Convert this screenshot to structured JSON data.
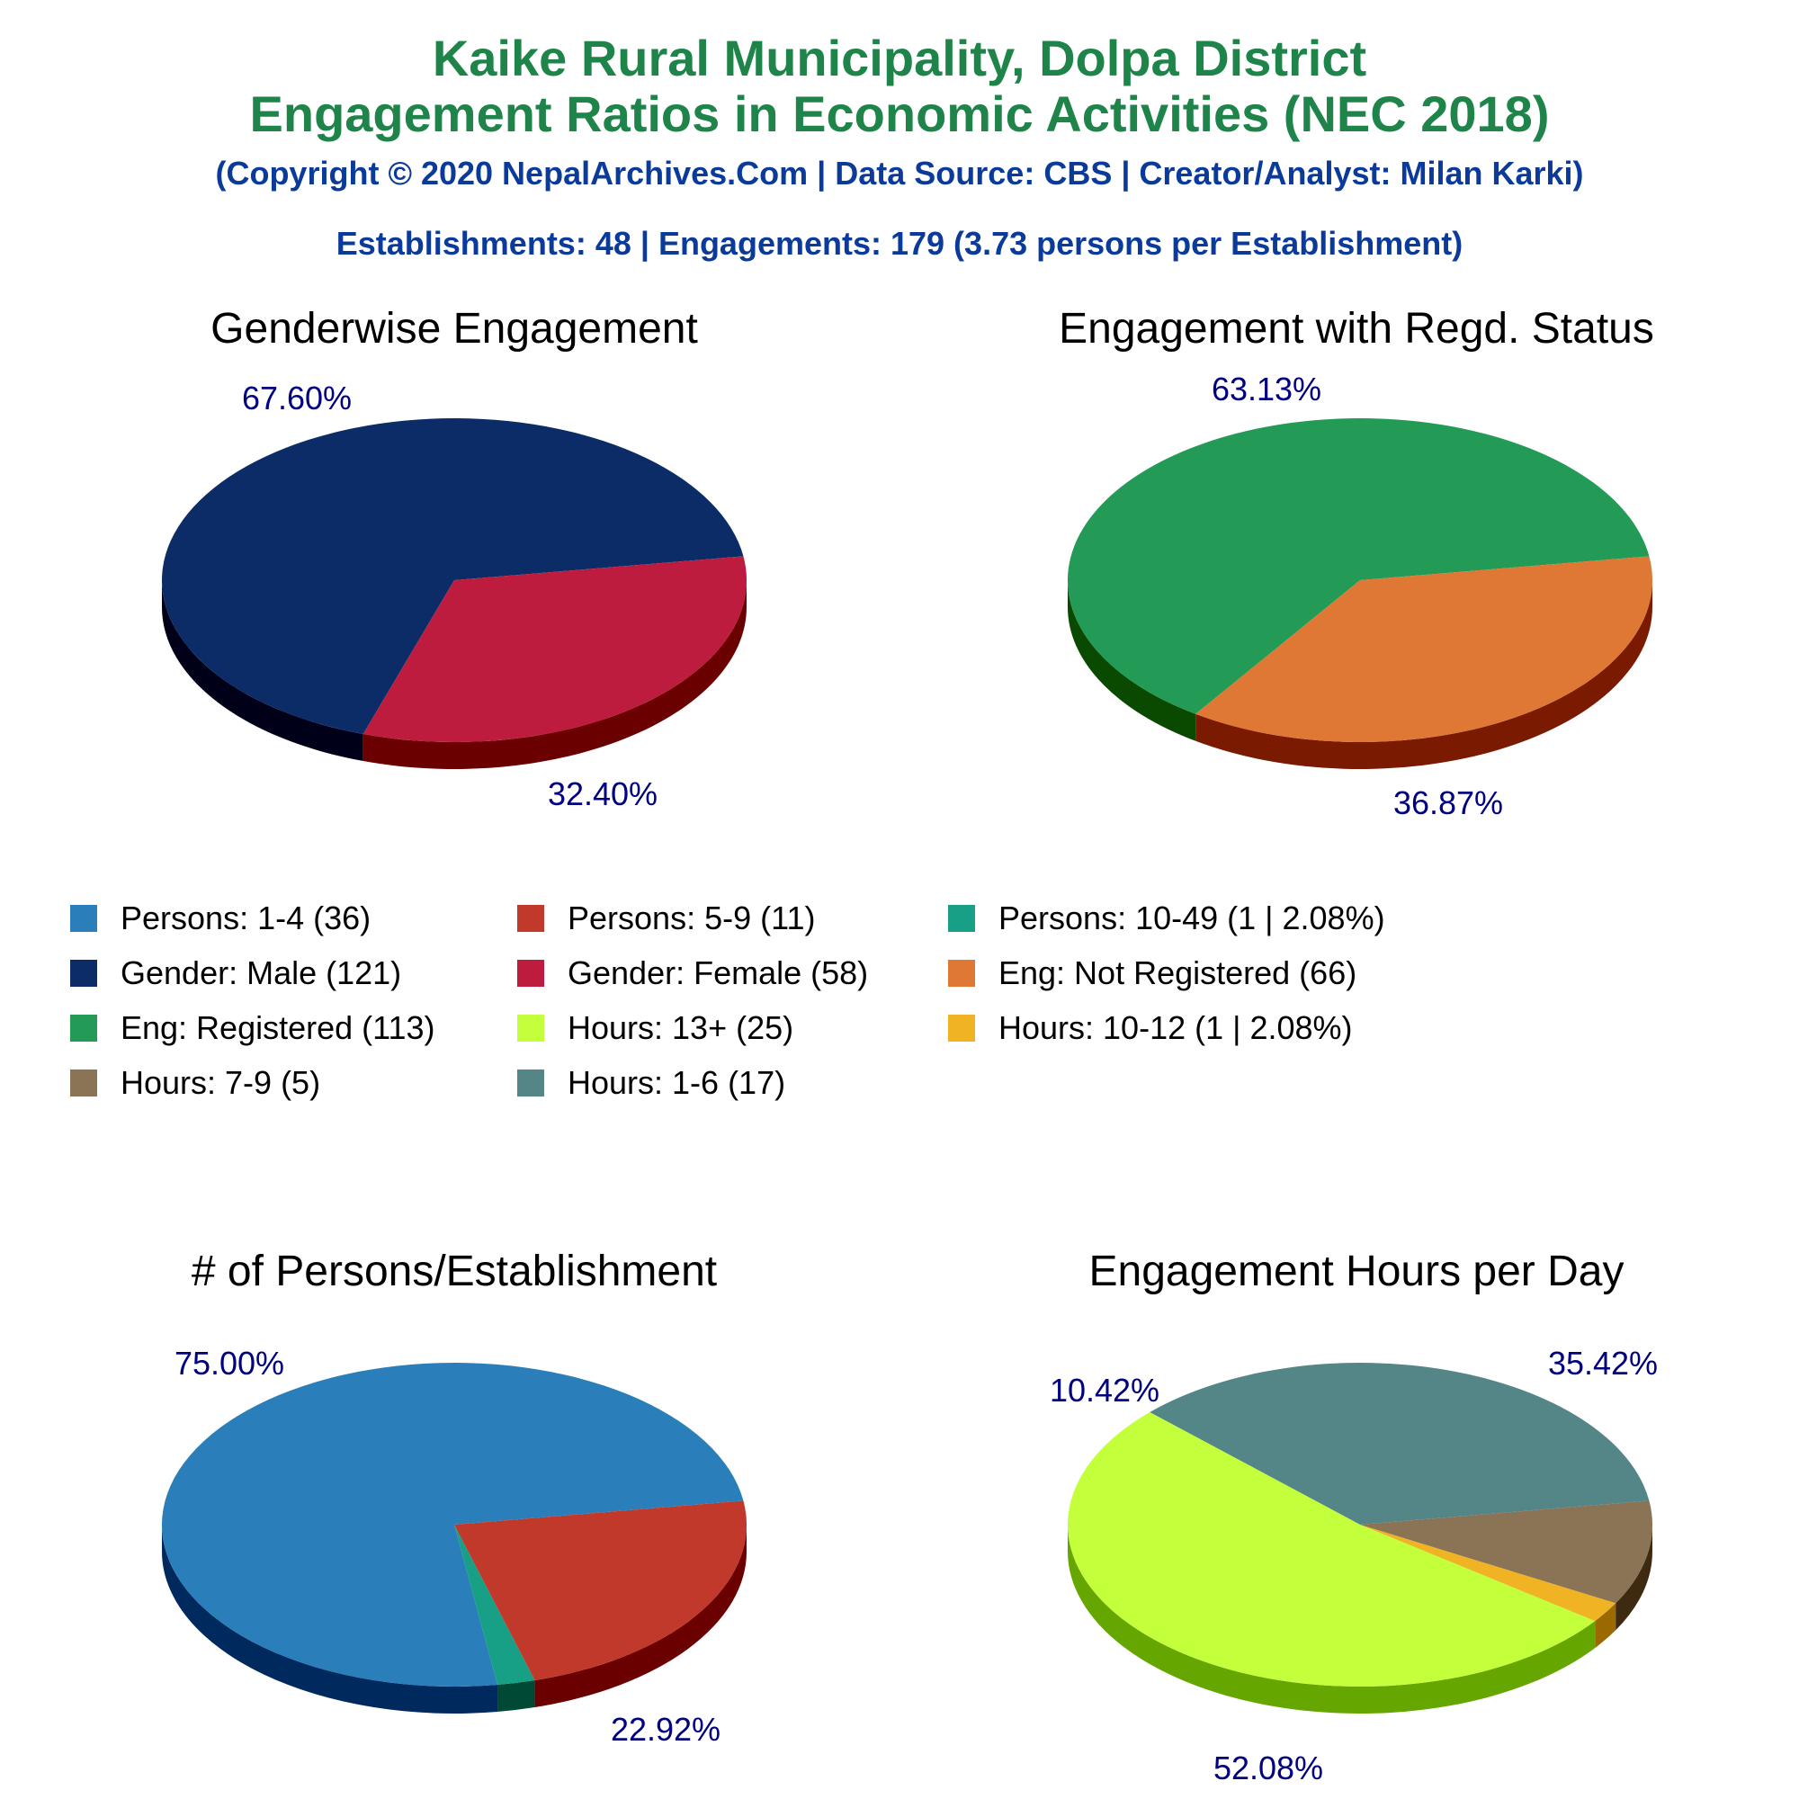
{
  "header": {
    "title_line1": "Kaike Rural Municipality, Dolpa District",
    "title_line2": "Engagement Ratios in Economic Activities (NEC 2018)",
    "subtitle": "(Copyright © 2020 NepalArchives.Com | Data Source: CBS | Creator/Analyst: Milan Karki)",
    "stats": "Establishments: 48 | Engagements: 179 (3.73 persons per Establishment)"
  },
  "legend": [
    {
      "label": "Persons: 1-4 (36)",
      "color": "#2a7fba"
    },
    {
      "label": "Persons: 5-9 (11)",
      "color": "#c0392b"
    },
    {
      "label": "Persons: 10-49 (1 | 2.08%)",
      "color": "#17a085"
    },
    {
      "label": "Gender: Male (121)",
      "color": "#0b2c66"
    },
    {
      "label": "Gender: Female (58)",
      "color": "#be1c3e"
    },
    {
      "label": "Eng: Not Registered (66)",
      "color": "#de7834"
    },
    {
      "label": "Eng: Registered (113)",
      "color": "#239b56"
    },
    {
      "label": "Hours: 13+ (25)",
      "color": "#c4ff3c"
    },
    {
      "label": "Hours: 10-12 (1 | 2.08%)",
      "color": "#efb324"
    },
    {
      "label": "Hours: 7-9 (5)",
      "color": "#8b7355"
    },
    {
      "label": "Hours: 1-6 (17)",
      "color": "#548687"
    }
  ],
  "chart_data": [
    {
      "type": "pie",
      "title": "Genderwise Engagement",
      "slices": [
        {
          "name": "Gender: Male",
          "value": 121,
          "percent_label": "67.60%",
          "color": "#0b2c66",
          "side": "#000018"
        },
        {
          "name": "Gender: Female",
          "value": 58,
          "percent_label": "32.40%",
          "color": "#be1c3e",
          "side": "#6b0000"
        }
      ]
    },
    {
      "type": "pie",
      "title": "Engagement with Regd. Status",
      "slices": [
        {
          "name": "Eng: Registered",
          "value": 113,
          "percent_label": "63.13%",
          "color": "#239b56",
          "side": "#0a4a00"
        },
        {
          "name": "Eng: Not Registered",
          "value": 66,
          "percent_label": "36.87%",
          "color": "#de7834",
          "side": "#7a1a00"
        }
      ]
    },
    {
      "type": "pie",
      "title": "# of Persons/Establishment",
      "slices": [
        {
          "name": "Persons: 1-4",
          "value": 36,
          "percent_label": "75.00%",
          "color": "#2a7fba",
          "side": "#002a5e"
        },
        {
          "name": "Persons: 10-49",
          "value": 1,
          "percent_label": "",
          "color": "#17a085",
          "side": "#004a35"
        },
        {
          "name": "Persons: 5-9",
          "value": 11,
          "percent_label": "22.92%",
          "color": "#c0392b",
          "side": "#6b0000"
        }
      ]
    },
    {
      "type": "pie",
      "title": "Engagement Hours per Day",
      "slices": [
        {
          "name": "Hours: 1-6",
          "value": 17,
          "percent_label": "35.42%",
          "color": "#548687",
          "side": "#0a3536"
        },
        {
          "name": "Hours: 13+",
          "value": 25,
          "percent_label": "52.08%",
          "color": "#c4ff3c",
          "side": "#66a600"
        },
        {
          "name": "Hours: 10-12",
          "value": 1,
          "percent_label": "",
          "color": "#efb324",
          "side": "#9a6a00"
        },
        {
          "name": "Hours: 7-9",
          "value": 5,
          "percent_label": "10.42%",
          "color": "#8b7355",
          "side": "#3e2a10"
        }
      ]
    }
  ]
}
